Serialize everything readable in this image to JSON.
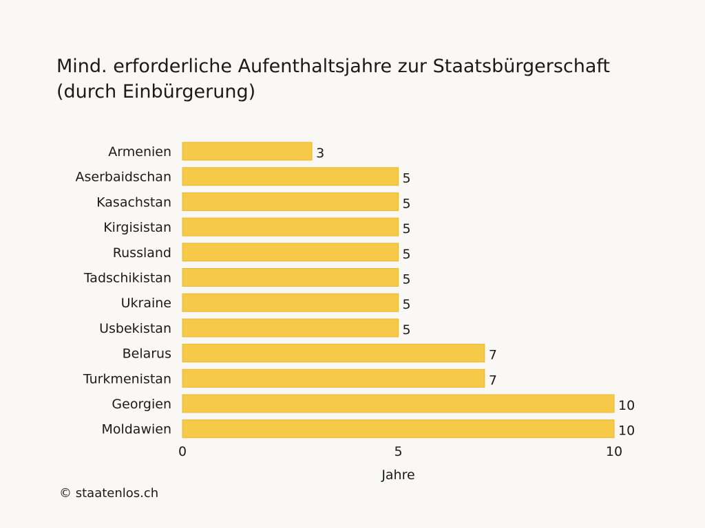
{
  "chart_data": {
    "type": "bar",
    "orientation": "horizontal",
    "title": "Mind. erforderliche Aufenthaltsjahre zur Staatsbürgerschaft (durch Einbürgerung)",
    "xlabel": "Jahre",
    "ylabel": "",
    "categories": [
      "Armenien",
      "Aserbaidschan",
      "Kasachstan",
      "Kirgisistan",
      "Russland",
      "Tadschikistan",
      "Ukraine",
      "Usbekistan",
      "Belarus",
      "Turkmenistan",
      "Georgien",
      "Moldawien"
    ],
    "values": [
      3,
      5,
      5,
      5,
      5,
      5,
      5,
      5,
      7,
      7,
      10,
      10
    ],
    "xlim": [
      0,
      10
    ],
    "xticks": [
      0,
      5,
      10
    ],
    "grid": false,
    "bar_color": "#f7c948",
    "bar_edge_color": "#ecb730"
  },
  "footer": {
    "copyright": "© staatenlos.ch"
  }
}
